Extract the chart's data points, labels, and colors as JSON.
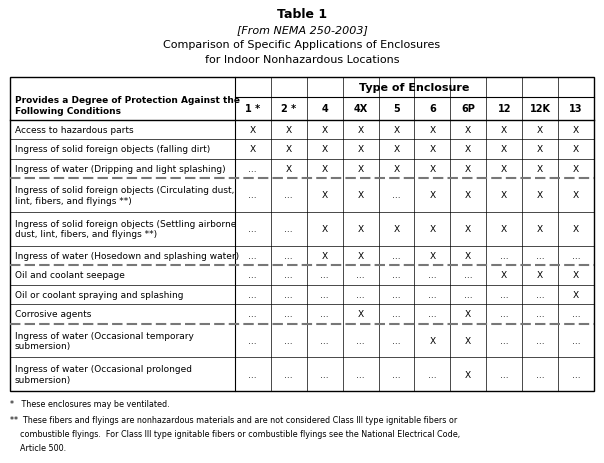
{
  "title_line1": "Table 1",
  "title_line2": "[From NEMA 250-2003]",
  "title_line3": "Comparison of Specific Applications of Enclosures",
  "title_line4": "for Indoor Nonhazardous Locations",
  "col_header_group": "Type of Enclosure",
  "col_header_left": "Provides a Degree of Protection Against the\nFollowing Conditions",
  "col_headers": [
    "1 *",
    "2 *",
    "4",
    "4X",
    "5",
    "6",
    "6P",
    "12",
    "12K",
    "13"
  ],
  "rows": [
    {
      "label": "Access to hazardous parts",
      "values": [
        "X",
        "X",
        "X",
        "X",
        "X",
        "X",
        "X",
        "X",
        "X",
        "X"
      ],
      "bold_border_above": false,
      "two_line": false
    },
    {
      "label": "Ingress of solid foreign objects (falling dirt)",
      "values": [
        "X",
        "X",
        "X",
        "X",
        "X",
        "X",
        "X",
        "X",
        "X",
        "X"
      ],
      "bold_border_above": false,
      "two_line": false
    },
    {
      "label": "Ingress of water (Dripping and light splashing)",
      "values": [
        "...",
        "X",
        "X",
        "X",
        "X",
        "X",
        "X",
        "X",
        "X",
        "X"
      ],
      "bold_border_above": false,
      "two_line": false
    },
    {
      "label": "Ingress of solid foreign objects (Circulating dust,\nlint, fibers, and flyings **)",
      "values": [
        "...",
        "...",
        "X",
        "X",
        "...",
        "X",
        "X",
        "X",
        "X",
        "X"
      ],
      "bold_border_above": true,
      "two_line": true
    },
    {
      "label": "Ingress of solid foreign objects (Settling airborne\ndust, lint, fibers, and flyings **)",
      "values": [
        "...",
        "...",
        "X",
        "X",
        "X",
        "X",
        "X",
        "X",
        "X",
        "X"
      ],
      "bold_border_above": false,
      "two_line": true
    },
    {
      "label": "Ingress of water (Hosedown and splashing water)",
      "values": [
        "...",
        "...",
        "X",
        "X",
        "...",
        "X",
        "X",
        "...",
        "...",
        "..."
      ],
      "bold_border_above": false,
      "two_line": false
    },
    {
      "label": "Oil and coolant seepage",
      "values": [
        "...",
        "...",
        "...",
        "...",
        "...",
        "...",
        "...",
        "X",
        "X",
        "X"
      ],
      "bold_border_above": true,
      "two_line": false
    },
    {
      "label": "Oil or coolant spraying and splashing",
      "values": [
        "...",
        "...",
        "...",
        "...",
        "...",
        "...",
        "...",
        "...",
        "...",
        "X"
      ],
      "bold_border_above": false,
      "two_line": false
    },
    {
      "label": "Corrosive agents",
      "values": [
        "...",
        "...",
        "...",
        "X",
        "...",
        "...",
        "X",
        "...",
        "...",
        "..."
      ],
      "bold_border_above": false,
      "two_line": false
    },
    {
      "label": "Ingress of water (Occasional temporary\nsubmersion)",
      "values": [
        "...",
        "...",
        "...",
        "...",
        "...",
        "X",
        "X",
        "...",
        "...",
        "..."
      ],
      "bold_border_above": true,
      "two_line": true
    },
    {
      "label": "Ingress of water (Occasional prolonged\nsubmersion)",
      "values": [
        "...",
        "...",
        "...",
        "...",
        "...",
        "...",
        "X",
        "...",
        "...",
        "..."
      ],
      "bold_border_above": false,
      "two_line": true
    }
  ],
  "footnote1": "*   These enclosures may be ventilated.",
  "footnote2_line1": "**  These fibers and flyings are nonhazardous materials and are not considered Class III type ignitable fibers or",
  "footnote2_line2": "    combustible flyings.  For Class III type ignitable fibers or combustible flyings see the National Electrical Code,",
  "footnote2_line3": "    Article 500.",
  "bg_color": "#ffffff",
  "font_family": "DejaVu Sans"
}
